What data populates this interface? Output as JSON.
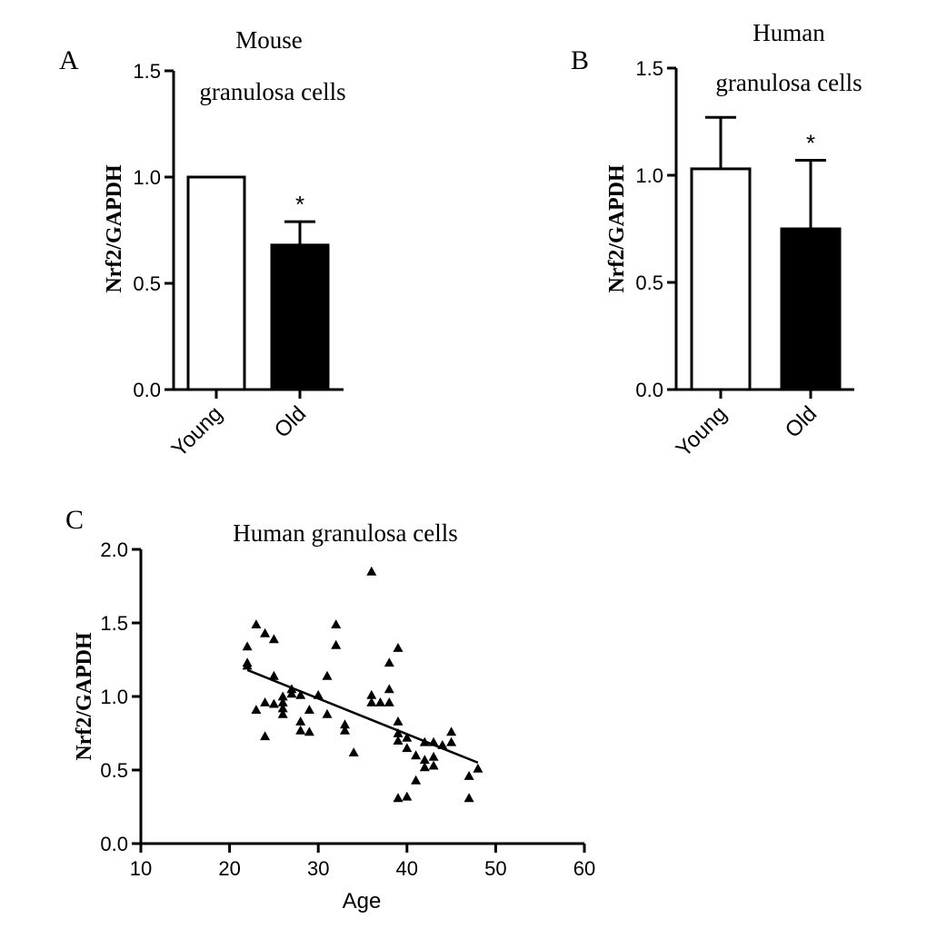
{
  "colors": {
    "ink": "#000000",
    "background": "#ffffff",
    "open_bar": "#ffffff",
    "filled_bar": "#000000"
  },
  "chart_data": [
    {
      "panel": "A",
      "type": "bar",
      "title_line1": "Mouse",
      "title_line2": "granulosa cells",
      "ylabel": "Nrf2/GAPDH",
      "xlabel": "",
      "ylim": [
        0,
        1.5
      ],
      "yticks": [
        "0.0",
        "0.5",
        "1.0",
        "1.5"
      ],
      "categories": [
        "Young",
        "Old"
      ],
      "values": [
        1.0,
        0.68
      ],
      "errors": [
        0.0,
        0.11
      ],
      "annotations": [
        "",
        "*"
      ]
    },
    {
      "panel": "B",
      "type": "bar",
      "title_line1": "Human",
      "title_line2": "granulosa cells",
      "ylabel": "Nrf2/GAPDH",
      "xlabel": "",
      "ylim": [
        0,
        1.5
      ],
      "yticks": [
        "0.0",
        "0.5",
        "1.0",
        "1.5"
      ],
      "categories": [
        "Young",
        "Old"
      ],
      "values": [
        1.03,
        0.75
      ],
      "errors": [
        0.24,
        0.32
      ],
      "annotations": [
        "",
        "*"
      ]
    },
    {
      "panel": "C",
      "type": "scatter",
      "title": "Human granulosa cells",
      "xlabel": "Age",
      "ylabel": "Nrf2/GAPDH",
      "xlim": [
        10,
        60
      ],
      "ylim": [
        0,
        2.0
      ],
      "xticks": [
        "10",
        "20",
        "30",
        "40",
        "50",
        "60"
      ],
      "yticks": [
        "0.0",
        "0.5",
        "1.0",
        "1.5",
        "2.0"
      ],
      "marker": "triangle",
      "points": [
        [
          22,
          1.34
        ],
        [
          22,
          1.23
        ],
        [
          22,
          1.21
        ],
        [
          23,
          1.49
        ],
        [
          23,
          0.91
        ],
        [
          24,
          1.43
        ],
        [
          24,
          0.96
        ],
        [
          24,
          0.73
        ],
        [
          25,
          1.39
        ],
        [
          25,
          1.14
        ],
        [
          25,
          0.95
        ],
        [
          26,
          1.0
        ],
        [
          26,
          0.96
        ],
        [
          26,
          0.92
        ],
        [
          26,
          0.88
        ],
        [
          27,
          1.05
        ],
        [
          27,
          1.02
        ],
        [
          28,
          1.01
        ],
        [
          28,
          0.83
        ],
        [
          28,
          0.77
        ],
        [
          29,
          0.91
        ],
        [
          29,
          0.76
        ],
        [
          30,
          1.01
        ],
        [
          31,
          1.14
        ],
        [
          31,
          0.88
        ],
        [
          32,
          1.49
        ],
        [
          32,
          1.35
        ],
        [
          33,
          0.81
        ],
        [
          33,
          0.77
        ],
        [
          34,
          0.62
        ],
        [
          36,
          1.85
        ],
        [
          36,
          1.01
        ],
        [
          36,
          0.96
        ],
        [
          37,
          0.96
        ],
        [
          38,
          1.23
        ],
        [
          38,
          1.05
        ],
        [
          38,
          0.96
        ],
        [
          39,
          1.33
        ],
        [
          39,
          0.83
        ],
        [
          39,
          0.75
        ],
        [
          39,
          0.7
        ],
        [
          39,
          0.31
        ],
        [
          40,
          0.72
        ],
        [
          40,
          0.65
        ],
        [
          40,
          0.32
        ],
        [
          41,
          0.6
        ],
        [
          41,
          0.43
        ],
        [
          42,
          0.69
        ],
        [
          42,
          0.57
        ],
        [
          42,
          0.52
        ],
        [
          43,
          0.69
        ],
        [
          43,
          0.59
        ],
        [
          43,
          0.53
        ],
        [
          44,
          0.67
        ],
        [
          45,
          0.76
        ],
        [
          45,
          0.69
        ],
        [
          47,
          0.46
        ],
        [
          47,
          0.31
        ],
        [
          48,
          0.51
        ]
      ],
      "regression": {
        "x_start": 22,
        "y_start": 1.18,
        "x_end": 48,
        "y_end": 0.55
      }
    }
  ],
  "panel_labels": [
    "A",
    "B",
    "C"
  ]
}
